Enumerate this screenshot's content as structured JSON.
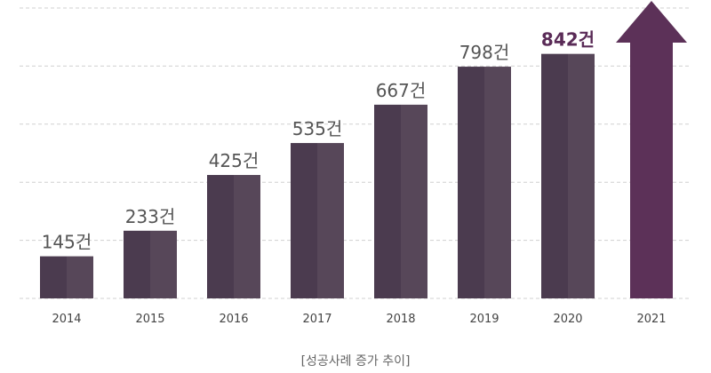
{
  "chart_data": {
    "type": "bar",
    "categories": [
      "2014",
      "2015",
      "2016",
      "2017",
      "2018",
      "2019",
      "2020",
      "2021"
    ],
    "values": [
      145,
      233,
      425,
      535,
      667,
      798,
      842,
      null
    ],
    "data_labels": [
      "145건",
      "233건",
      "425건",
      "535건",
      "667건",
      "798건",
      "842건",
      ""
    ],
    "highlight_label_index": 6,
    "arrow_category": "2021",
    "xlabel": "",
    "ylabel": "",
    "ylim": [
      0,
      1000
    ],
    "grid": true,
    "legend": "none",
    "colors": {
      "bar_dark": "#4b3b4f",
      "bar_light": "#574759",
      "arrow": "#5c3158",
      "label": "#555555",
      "highlight_label": "#5a2b57",
      "grid": "#d0d0d0"
    }
  },
  "caption": "[성공사례 증가 추이]"
}
